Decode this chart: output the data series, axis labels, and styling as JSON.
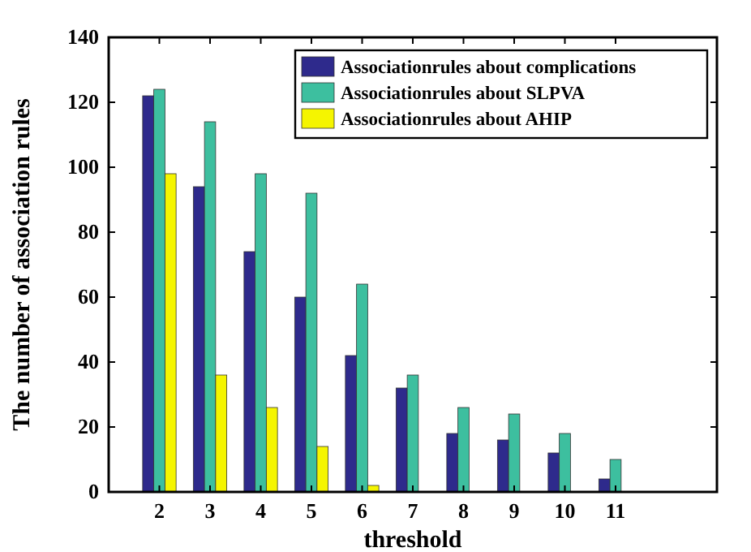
{
  "chart_data": {
    "type": "bar",
    "xlabel": "threshold",
    "ylabel": "The number of association rules",
    "x": [
      2,
      3,
      4,
      5,
      6,
      7,
      8,
      9,
      10,
      11
    ],
    "series": [
      {
        "name": "Associationrules about complications",
        "color": "#2e2a8c",
        "values": [
          122,
          94,
          74,
          60,
          42,
          32,
          18,
          16,
          12,
          4
        ]
      },
      {
        "name": "Associationrules about SLPVA",
        "color": "#3dbf9f",
        "values": [
          124,
          114,
          98,
          92,
          64,
          36,
          26,
          24,
          18,
          10
        ]
      },
      {
        "name": "Associationrules about AHIP",
        "color": "#f5f500",
        "values": [
          98,
          36,
          26,
          14,
          2,
          0,
          0,
          0,
          0,
          0
        ]
      }
    ],
    "xlim": [
      1,
      13
    ],
    "xticks": [
      2,
      3,
      4,
      5,
      6,
      7,
      8,
      9,
      10,
      11
    ],
    "ylim": [
      0,
      140
    ],
    "yticks": [
      0,
      20,
      40,
      60,
      80,
      100,
      120,
      140
    ],
    "grid": false,
    "legend": "top right"
  }
}
